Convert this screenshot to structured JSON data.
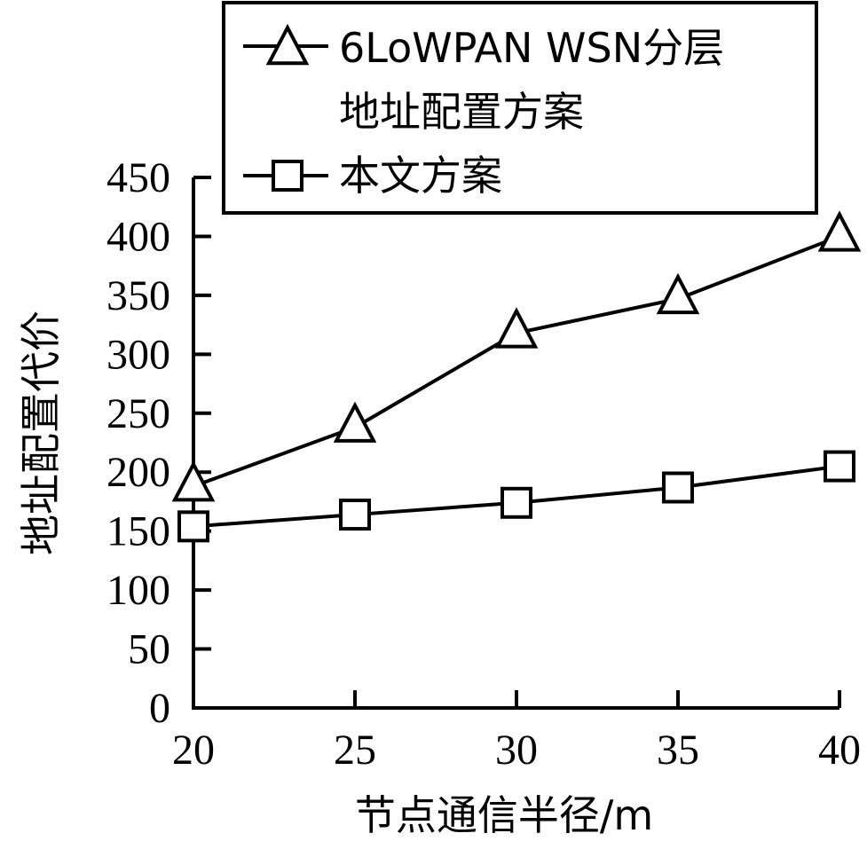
{
  "chart_data": {
    "type": "line",
    "title": "",
    "xlabel": "节点通信半径/m",
    "ylabel": "地址配置代价",
    "x": [
      20,
      25,
      30,
      35,
      40
    ],
    "x_ticks": [
      "20",
      "25",
      "30",
      "35",
      "40"
    ],
    "y_ticks": [
      "0",
      "50",
      "100",
      "150",
      "200",
      "250",
      "300",
      "350",
      "400",
      "450"
    ],
    "xlim": [
      20,
      40
    ],
    "ylim": [
      0,
      450
    ],
    "grid": false,
    "legend_position": "top",
    "series": [
      {
        "name_lines": [
          "6LoWPAN WSN分层",
          "地址配置方案"
        ],
        "marker": "triangle",
        "color": "#000000",
        "values": [
          188,
          238,
          318,
          347,
          400
        ]
      },
      {
        "name_lines": [
          "本文方案"
        ],
        "marker": "square",
        "color": "#000000",
        "values": [
          154,
          164,
          174,
          187,
          205
        ]
      }
    ]
  }
}
